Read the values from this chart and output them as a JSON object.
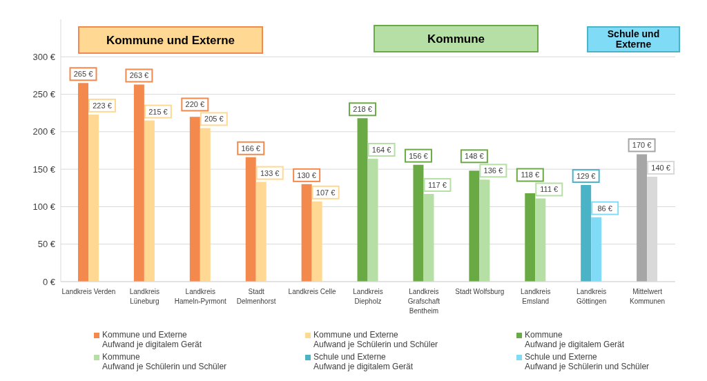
{
  "chart_data": {
    "type": "bar",
    "categories": [
      "Landkreis Verden",
      "Landkreis Lüneburg",
      "Landkreis Hameln-Pyrmont",
      "Stadt Delmenhorst",
      "Landkreis Celle",
      "Landkreis Diepholz",
      "Landkreis Grafschaft Bentheim",
      "Stadt Wolfsburg",
      "Landkreis Emsland",
      "Landkreis Göttingen",
      "Mittelwert Kommunen"
    ],
    "series": [
      {
        "name": "Kommune und Externe\nAufwand je digitalem Gerät",
        "color": "#f4894e",
        "values": [
          265,
          263,
          220,
          166,
          130,
          null,
          null,
          null,
          null,
          null,
          null
        ],
        "value_labels": [
          "265 €",
          "263 €",
          "220 €",
          "166 €",
          "130 €",
          null,
          null,
          null,
          null,
          null,
          null
        ]
      },
      {
        "name": "Kommune und Externe\nAufwand je Schülerin und Schüler",
        "color": "#ffd993",
        "values": [
          223,
          215,
          205,
          133,
          107,
          null,
          null,
          null,
          null,
          null,
          null
        ],
        "value_labels": [
          "223 €",
          "215 €",
          "205 €",
          "133 €",
          "107 €",
          null,
          null,
          null,
          null,
          null,
          null
        ]
      },
      {
        "name": "Kommune\nAufwand je digitalem Gerät",
        "color": "#6aaa45",
        "values": [
          null,
          null,
          null,
          null,
          null,
          218,
          156,
          148,
          118,
          null,
          null
        ],
        "value_labels": [
          null,
          null,
          null,
          null,
          null,
          "218 €",
          "156 €",
          "148 €",
          "118 €",
          null,
          null
        ]
      },
      {
        "name": "Kommune\nAufwand je Schülerin und Schüler",
        "color": "#b5dfa4",
        "values": [
          null,
          null,
          null,
          null,
          null,
          164,
          117,
          136,
          111,
          null,
          null
        ],
        "value_labels": [
          null,
          null,
          null,
          null,
          null,
          "164 €",
          "117 €",
          "136 €",
          "111 €",
          null,
          null
        ]
      },
      {
        "name": "Schule und Externe\nAufwand je digitalem Gerät",
        "color": "#4bb3c6",
        "values": [
          null,
          null,
          null,
          null,
          null,
          null,
          null,
          null,
          null,
          129,
          null
        ],
        "value_labels": [
          null,
          null,
          null,
          null,
          null,
          null,
          null,
          null,
          null,
          "129 €",
          null
        ]
      },
      {
        "name": "Schule und Externe\nAufwand je Schülerin und Schüler",
        "color": "#80dcf6",
        "values": [
          null,
          null,
          null,
          null,
          null,
          null,
          null,
          null,
          null,
          86,
          null
        ],
        "value_labels": [
          null,
          null,
          null,
          null,
          null,
          null,
          null,
          null,
          null,
          "86 €",
          null
        ]
      },
      {
        "color": "#a6a6a6",
        "values": [
          null,
          null,
          null,
          null,
          null,
          null,
          null,
          null,
          null,
          null,
          170
        ],
        "value_labels": [
          null,
          null,
          null,
          null,
          null,
          null,
          null,
          null,
          null,
          null,
          "170 €"
        ]
      },
      {
        "color": "#d9d9d9",
        "values": [
          null,
          null,
          null,
          null,
          null,
          null,
          null,
          null,
          null,
          null,
          140
        ],
        "value_labels": [
          null,
          null,
          null,
          null,
          null,
          null,
          null,
          null,
          null,
          null,
          "140 €"
        ]
      }
    ],
    "annotations": [
      "Kommune und Externe",
      "Kommune",
      "Schule und Externe"
    ],
    "ylim": [
      0,
      350
    ],
    "yticks": [
      {
        "value": 0,
        "label": "0 €"
      },
      {
        "value": 50,
        "label": "50 €"
      },
      {
        "value": 100,
        "label": "100 €"
      },
      {
        "value": 150,
        "label": "150 €"
      },
      {
        "value": 200,
        "label": "200 €"
      },
      {
        "value": 250,
        "label": "250 €"
      },
      {
        "value": 300,
        "label": "300 €"
      }
    ],
    "grid": "y",
    "legend": "bottom"
  }
}
